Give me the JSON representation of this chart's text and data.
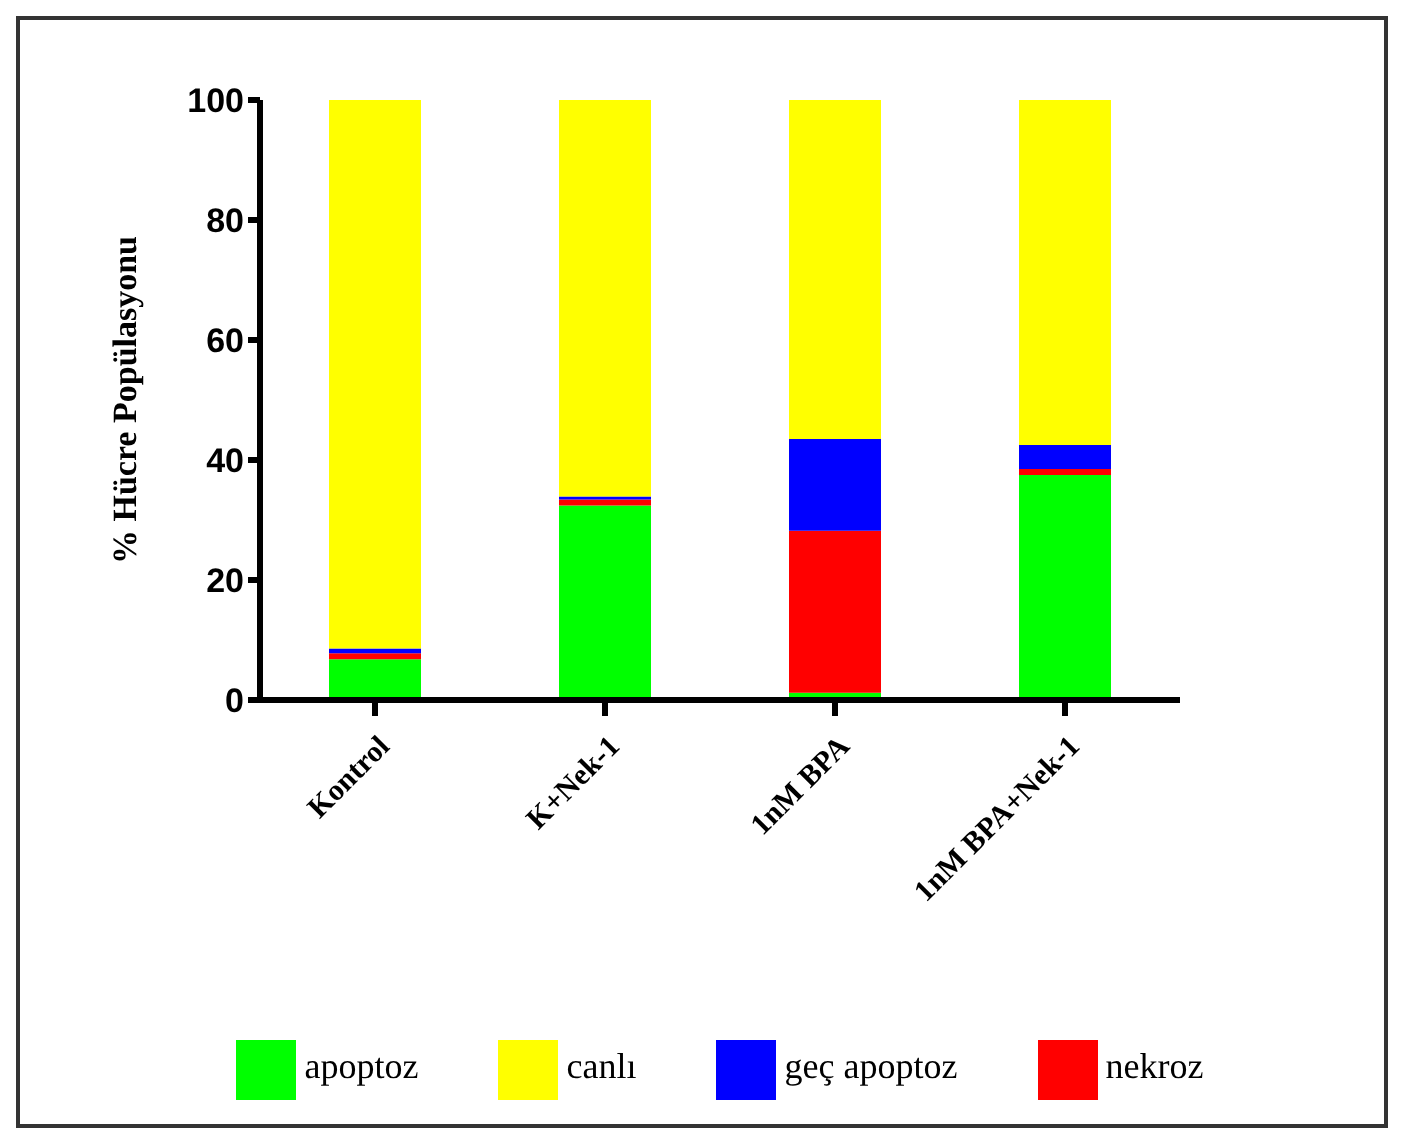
{
  "chart_data": {
    "type": "bar",
    "stacked": true,
    "ylabel": "% Hücre Popülasyonu",
    "categories": [
      "Kontrol",
      "K+Nek-1",
      "1nM BPA",
      "1nM BPA+Nek-1"
    ],
    "series": [
      {
        "name": "apoptoz",
        "color": "#00ff00",
        "values": [
          6.8,
          32.4,
          1.2,
          37.5
        ]
      },
      {
        "name": "nekroz",
        "color": "#ff0000",
        "values": [
          1,
          1,
          27,
          1
        ]
      },
      {
        "name": "geç apoptoz",
        "color": "#0000ff",
        "values": [
          0.8,
          0.5,
          15.3,
          4
        ]
      },
      {
        "name": "canlı",
        "color": "#ffff00",
        "values": [
          91.4,
          66.1,
          56.5,
          57.5
        ]
      }
    ],
    "ylim": [
      0,
      100
    ],
    "yticks": [
      0,
      20,
      40,
      60,
      80,
      100
    ],
    "grid": false,
    "legend": "bottom"
  }
}
